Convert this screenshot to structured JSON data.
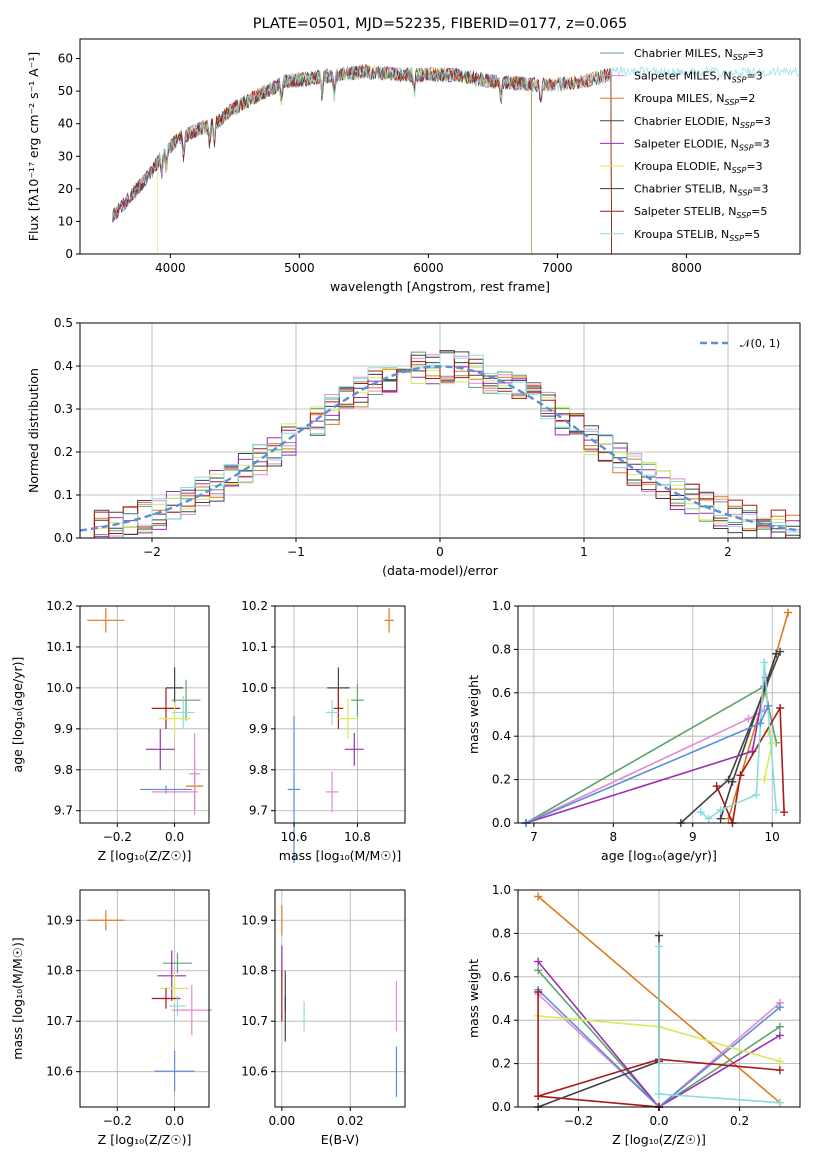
{
  "figure_title": "PLATE=0501, MJD=52235, FIBERID=0177, z=0.065",
  "colors": {
    "Chabrier MILES": "#5fa36b",
    "Salpeter MILES": "#e38ad4",
    "Kroupa MILES": "#df7a22",
    "Chabrier ELODIE": "#444444",
    "Salpeter ELODIE": "#9a2fb5",
    "Kroupa ELODIE": "#d8ea5a",
    "Chabrier STELIB": "#3f3f3f",
    "Salpeter STELIB": "#a91b1b",
    "Kroupa STELIB": "#8adddd",
    "gauss": "#5b8fd6",
    "grid": "#b0b0b0"
  },
  "chart_data": [
    {
      "id": "spectrum",
      "type": "line",
      "title": "PLATE=0501, MJD=52235, FIBERID=0177, z=0.065",
      "xlabel": "wavelength [Angstrom, rest frame]",
      "ylabel": "Flux [fλ10⁻¹⁷ erg cm⁻² s⁻¹ A⁻¹]",
      "xlim": [
        3300,
        8880
      ],
      "ylim": [
        0,
        66
      ],
      "xticks": [
        4000,
        5000,
        6000,
        7000,
        8000
      ],
      "yticks": [
        0,
        10,
        20,
        30,
        40,
        50,
        60
      ],
      "grid": false,
      "legend_position": "top-right",
      "legend": [
        {
          "name": "Chabrier MILES",
          "suffix": "=3"
        },
        {
          "name": "Salpeter MILES",
          "suffix": "=3"
        },
        {
          "name": "Kroupa MILES",
          "suffix": "=2"
        },
        {
          "name": "Chabrier ELODIE",
          "suffix": "=3"
        },
        {
          "name": "Salpeter ELODIE",
          "suffix": "=3"
        },
        {
          "name": "Kroupa ELODIE",
          "suffix": "=3"
        },
        {
          "name": "Chabrier STELIB",
          "suffix": "=3"
        },
        {
          "name": "Salpeter STELIB",
          "suffix": "=5"
        },
        {
          "name": "Kroupa STELIB",
          "suffix": "=5"
        }
      ],
      "legend_sub": "SSP",
      "continuum": {
        "x": [
          3560,
          3700,
          3850,
          3950,
          4050,
          4200,
          4350,
          4500,
          4700,
          4900,
          5100,
          5300,
          5500,
          5800,
          6000,
          6200,
          6500,
          6800,
          7000,
          7200,
          7400,
          7500
        ],
        "y": [
          12,
          18,
          25,
          31,
          35,
          38,
          40,
          45,
          49,
          53,
          54,
          55,
          56,
          55,
          55,
          55,
          53,
          52,
          52,
          53,
          55,
          56
        ]
      },
      "series_ranges": {
        "Chabrier MILES": [
          3550,
          7420
        ],
        "Salpeter MILES": [
          3550,
          7420
        ],
        "Kroupa MILES": [
          3550,
          7420
        ],
        "Chabrier ELODIE": [
          3550,
          6800
        ],
        "Salpeter ELODIE": [
          3550,
          6800
        ],
        "Kroupa ELODIE": [
          3900,
          6800
        ],
        "Chabrier STELIB": [
          3550,
          7420
        ],
        "Salpeter STELIB": [
          3550,
          7420
        ],
        "Kroupa STELIB": [
          3550,
          8900
        ]
      }
    },
    {
      "id": "histogram",
      "type": "line",
      "xlabel": "(data-model)/error",
      "ylabel": "Normed distribution",
      "xlim": [
        -2.5,
        2.5
      ],
      "ylim": [
        0,
        0.5
      ],
      "xticks": [
        -2,
        -1,
        0,
        1,
        2
      ],
      "yticks": [
        0.0,
        0.1,
        0.2,
        0.3,
        0.4,
        0.5
      ],
      "grid": true,
      "legend": [
        "𝒩(0, 1)"
      ],
      "legend_position": "top-right",
      "bin_width": 0.1
    },
    {
      "id": "age_vs_Z",
      "type": "scatter",
      "xlabel": "Z [log₁₀(Z/Z☉)]",
      "ylabel": "age  [log₁₀(age/yr)]",
      "xlim": [
        -0.33,
        0.12
      ],
      "ylim": [
        9.67,
        10.2
      ],
      "xticks": [
        -0.2,
        0.0
      ],
      "yticks": [
        9.7,
        9.8,
        9.9,
        10.0,
        10.1,
        10.2
      ],
      "grid": true,
      "points": [
        {
          "series": "Kroupa MILES",
          "x": -0.24,
          "y": 10.165,
          "xerr": 0.065,
          "yerr": 0.03
        },
        {
          "series": "Chabrier ELODIE",
          "x": 0.0,
          "y": 10.0,
          "xerr": 0.03,
          "yerr": 0.05
        },
        {
          "series": "Chabrier MILES",
          "x": 0.04,
          "y": 9.97,
          "xerr": 0.05,
          "yerr": 0.05
        },
        {
          "series": "Salpeter STELIB",
          "x": -0.03,
          "y": 9.95,
          "xerr": 0.05,
          "yerr": 0.05
        },
        {
          "series": "Kroupa STELIB",
          "x": 0.03,
          "y": 9.94,
          "xerr": 0.04,
          "yerr": 0.04
        },
        {
          "series": "Kroupa ELODIE",
          "x": 0.0,
          "y": 9.925,
          "xerr": 0.055,
          "yerr": 0.04
        },
        {
          "series": "Salpeter ELODIE",
          "x": -0.05,
          "y": 9.85,
          "xerr": 0.05,
          "yerr": 0.05
        },
        {
          "series": "Kroupa MILES",
          "x": 0.07,
          "y": 9.76,
          "xerr": 0.03,
          "yerr": 0.06
        },
        {
          "series": "Salpeter MILES",
          "x": 0.07,
          "y": 9.79,
          "xerr": 0.02,
          "yerr": 0.1
        },
        {
          "series": "gauss",
          "x": -0.03,
          "y": 9.752,
          "xerr": 0.09,
          "yerr": 0.01
        },
        {
          "series": "Salpeter MILES",
          "x": 0.0,
          "y": 9.746,
          "xerr": 0.08,
          "yerr": 0.005
        }
      ]
    },
    {
      "id": "age_vs_mass",
      "type": "scatter",
      "xlabel": "mass [log₁₀(M/M☉)]",
      "ylabel": "",
      "xlim": [
        10.54,
        10.95
      ],
      "ylim": [
        9.67,
        10.2
      ],
      "xticks": [
        10.6,
        10.8
      ],
      "yticks": [
        9.7,
        9.8,
        9.9,
        10.0,
        10.1,
        10.2
      ],
      "grid": true,
      "points": [
        {
          "series": "Kroupa MILES",
          "x": 10.9,
          "y": 10.165,
          "xerr": 0.015,
          "yerr": 0.03
        },
        {
          "series": "Chabrier ELODIE",
          "x": 10.74,
          "y": 10.0,
          "xerr": 0.035,
          "yerr": 0.05
        },
        {
          "series": "Chabrier MILES",
          "x": 10.8,
          "y": 9.97,
          "xerr": 0.02,
          "yerr": 0.04
        },
        {
          "series": "Salpeter STELIB",
          "x": 10.74,
          "y": 9.95,
          "xerr": 0.015,
          "yerr": 0.05
        },
        {
          "series": "Kroupa STELIB",
          "x": 10.72,
          "y": 9.94,
          "xerr": 0.02,
          "yerr": 0.03
        },
        {
          "series": "Kroupa ELODIE",
          "x": 10.77,
          "y": 9.925,
          "xerr": 0.03,
          "yerr": 0.05
        },
        {
          "series": "Salpeter ELODIE",
          "x": 10.79,
          "y": 9.85,
          "xerr": 0.03,
          "yerr": 0.04
        },
        {
          "series": "gauss",
          "x": 10.6,
          "y": 9.752,
          "xerr": 0.02,
          "yerr": 0.18
        },
        {
          "series": "Salpeter MILES",
          "x": 10.72,
          "y": 9.746,
          "xerr": 0.02,
          "yerr": 0.05
        }
      ]
    },
    {
      "id": "weight_vs_age",
      "type": "line",
      "xlabel": "age  [log₁₀(age/yr)]",
      "ylabel": "mass weight",
      "xlim": [
        6.8,
        10.35
      ],
      "ylim": [
        0,
        1.0
      ],
      "xticks": [
        7,
        8,
        9,
        10
      ],
      "yticks": [
        0.0,
        0.2,
        0.4,
        0.6,
        0.8,
        1.0
      ],
      "grid": true,
      "series": [
        {
          "name": "Chabrier MILES",
          "x": [
            6.9,
            9.9,
            10.05
          ],
          "y": [
            0.0,
            0.63,
            0.37
          ]
        },
        {
          "name": "Salpeter MILES",
          "x": [
            6.9,
            9.7,
            9.9
          ],
          "y": [
            0.0,
            0.48,
            0.52
          ]
        },
        {
          "name": "Kroupa MILES",
          "x": [
            9.45,
            10.2
          ],
          "y": [
            0.02,
            0.97
          ]
        },
        {
          "name": "Chabrier ELODIE",
          "x": [
            8.85,
            9.45,
            10.1
          ],
          "y": [
            0.0,
            0.2,
            0.79
          ]
        },
        {
          "name": "Salpeter ELODIE",
          "x": [
            6.9,
            9.75,
            9.92
          ],
          "y": [
            0.0,
            0.33,
            0.67
          ]
        },
        {
          "name": "Kroupa ELODIE",
          "x": [
            9.9,
            10.0,
            9.95
          ],
          "y": [
            0.2,
            0.37,
            0.42
          ]
        },
        {
          "name": "Chabrier STELIB",
          "x": [
            9.35,
            9.5,
            10.05
          ],
          "y": [
            0.02,
            0.19,
            0.78
          ]
        },
        {
          "name": "Salpeter STELIB",
          "x": [
            9.3,
            9.5,
            9.6,
            10.1,
            10.15
          ],
          "y": [
            0.17,
            0.0,
            0.22,
            0.53,
            0.05
          ]
        },
        {
          "name": "Kroupa STELIB",
          "x": [
            9.1,
            9.2,
            9.35,
            9.8,
            9.9,
            10.05
          ],
          "y": [
            0.05,
            0.02,
            0.06,
            0.13,
            0.74,
            0.06
          ]
        },
        {
          "name": "gauss",
          "x": [
            6.9,
            9.85,
            9.95
          ],
          "y": [
            0.0,
            0.46,
            0.54
          ]
        }
      ]
    },
    {
      "id": "mass_vs_Z",
      "type": "scatter",
      "xlabel": "Z [log₁₀(Z/Z☉)]",
      "ylabel": "mass [log₁₀(M/M☉)]",
      "xlim": [
        -0.33,
        0.12
      ],
      "ylim": [
        10.53,
        10.96
      ],
      "xticks": [
        -0.2,
        0.0
      ],
      "yticks": [
        10.6,
        10.7,
        10.8,
        10.9
      ],
      "grid": true,
      "points": [
        {
          "series": "Kroupa MILES",
          "x": -0.24,
          "y": 10.9,
          "xerr": 0.065,
          "yerr": 0.02
        },
        {
          "series": "Chabrier MILES",
          "x": 0.01,
          "y": 10.815,
          "xerr": 0.05,
          "yerr": 0.02
        },
        {
          "series": "Salpeter ELODIE",
          "x": -0.01,
          "y": 10.79,
          "xerr": 0.05,
          "yerr": 0.05
        },
        {
          "series": "Kroupa ELODIE",
          "x": 0.0,
          "y": 10.765,
          "xerr": 0.05,
          "yerr": 0.03
        },
        {
          "series": "Salpeter STELIB",
          "x": -0.03,
          "y": 10.745,
          "xerr": 0.05,
          "yerr": 0.02
        },
        {
          "series": "Kroupa STELIB",
          "x": 0.01,
          "y": 10.73,
          "xerr": 0.03,
          "yerr": 0.02
        },
        {
          "series": "Salpeter MILES",
          "x": 0.06,
          "y": 10.722,
          "xerr": 0.07,
          "yerr": 0.05
        },
        {
          "series": "gauss",
          "x": 0.0,
          "y": 10.601,
          "xerr": 0.07,
          "yerr": 0.04
        }
      ]
    },
    {
      "id": "mass_vs_EBV",
      "type": "scatter",
      "xlabel": "E(B-V)",
      "ylabel": "",
      "xlim": [
        -0.002,
        0.036
      ],
      "ylim": [
        10.53,
        10.96
      ],
      "xticks": [
        0.0,
        0.02
      ],
      "yticks": [
        10.6,
        10.7,
        10.8,
        10.9
      ],
      "grid": true,
      "points": [
        {
          "series": "Kroupa MILES",
          "x": 0.0,
          "y": 10.9,
          "yerr": 0.03
        },
        {
          "series": "Salpeter ELODIE",
          "x": 0.0,
          "y": 10.82,
          "yerr": 0.03
        },
        {
          "series": "Salpeter STELIB",
          "x": 0.0,
          "y": 10.75,
          "yerr": 0.05
        },
        {
          "series": "Chabrier ELODIE",
          "x": 0.001,
          "y": 10.76,
          "yerr": 0.04
        },
        {
          "series": "Chabrier STELIB",
          "x": 0.001,
          "y": 10.705,
          "yerr": 0.045
        },
        {
          "series": "Kroupa STELIB",
          "x": 0.0065,
          "y": 10.71,
          "yerr": 0.03
        },
        {
          "series": "Salpeter MILES",
          "x": 0.0335,
          "y": 10.73,
          "yerr": 0.05
        },
        {
          "series": "gauss",
          "x": 0.0335,
          "y": 10.6,
          "yerr": 0.05
        }
      ]
    },
    {
      "id": "weight_vs_Z",
      "type": "line",
      "xlabel": "Z [log₁₀(Z/Z☉)]",
      "ylabel": "mass weight",
      "xlim": [
        -0.35,
        0.35
      ],
      "ylim": [
        0,
        1.0
      ],
      "xticks": [
        -0.2,
        0.0,
        0.2
      ],
      "yticks": [
        0.0,
        0.2,
        0.4,
        0.6,
        0.8,
        1.0
      ],
      "grid": true,
      "series": [
        {
          "name": "Kroupa MILES",
          "x": [
            -0.3,
            0.3
          ],
          "y": [
            0.97,
            0.02
          ]
        },
        {
          "name": "Chabrier MILES",
          "x": [
            -0.3,
            0.0,
            0.3
          ],
          "y": [
            0.63,
            0.0,
            0.37
          ]
        },
        {
          "name": "Salpeter ELODIE",
          "x": [
            -0.3,
            0.0,
            0.3
          ],
          "y": [
            0.67,
            0.0,
            0.33
          ]
        },
        {
          "name": "Salpeter MILES",
          "x": [
            -0.3,
            0.0,
            0.3
          ],
          "y": [
            0.52,
            0.0,
            0.48
          ]
        },
        {
          "name": "gauss",
          "x": [
            -0.3,
            0.0,
            0.3
          ],
          "y": [
            0.54,
            0.0,
            0.46
          ]
        },
        {
          "name": "Kroupa ELODIE",
          "x": [
            -0.3,
            0.0,
            0.3
          ],
          "y": [
            0.42,
            0.37,
            0.21
          ]
        },
        {
          "name": "Chabrier STELIB",
          "x": [
            -0.3,
            0.0,
            0.0
          ],
          "y": [
            0.0,
            0.21,
            0.79
          ]
        },
        {
          "name": "Salpeter STELIB",
          "x": [
            -0.3,
            -0.3,
            0.0,
            0.3
          ],
          "y": [
            0.53,
            0.05,
            0.22,
            0.17
          ]
        },
        {
          "name": "Salpeter STELIB",
          "x": [
            -0.3,
            0.0,
            0.0
          ],
          "y": [
            0.05,
            0.0,
            0.0
          ]
        },
        {
          "name": "Kroupa STELIB",
          "x": [
            0.0,
            0.0,
            0.3
          ],
          "y": [
            0.74,
            0.06,
            0.02
          ]
        }
      ]
    }
  ]
}
